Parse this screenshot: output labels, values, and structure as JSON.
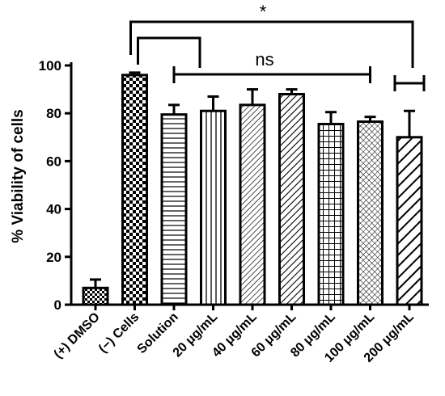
{
  "chart_data": {
    "type": "bar",
    "ylabel": "% Viability of cells",
    "xlabel": "",
    "ylim": [
      0,
      100
    ],
    "yticks": [
      0,
      20,
      40,
      60,
      80,
      100
    ],
    "categories": [
      "(+) DMSO",
      "(−) Cells",
      "Solution",
      "20 μg/mL",
      "40 μg/mL",
      "60 μg/mL",
      "80 μg/mL",
      "100 μg/mL",
      "200 μg/mL"
    ],
    "values": [
      7,
      96,
      79.5,
      81,
      83.5,
      88,
      75.5,
      76.5,
      70
    ],
    "errors": [
      3.5,
      1,
      4,
      6,
      6.5,
      2,
      5,
      2,
      11
    ],
    "fill_patterns": [
      "small-checker",
      "large-checker",
      "horizontal-lines",
      "vertical-lines",
      "diagonal-thin",
      "diagonal-medium",
      "grid",
      "crosshatch",
      "diagonal-thick"
    ],
    "annotations": [
      {
        "label": "*",
        "description": "significance bracket between (−) Cells and 200 μg/mL"
      },
      {
        "label": "ns",
        "description": "bracket spanning Solution to 100 μg/mL"
      }
    ],
    "grid": false,
    "legend": "none"
  }
}
